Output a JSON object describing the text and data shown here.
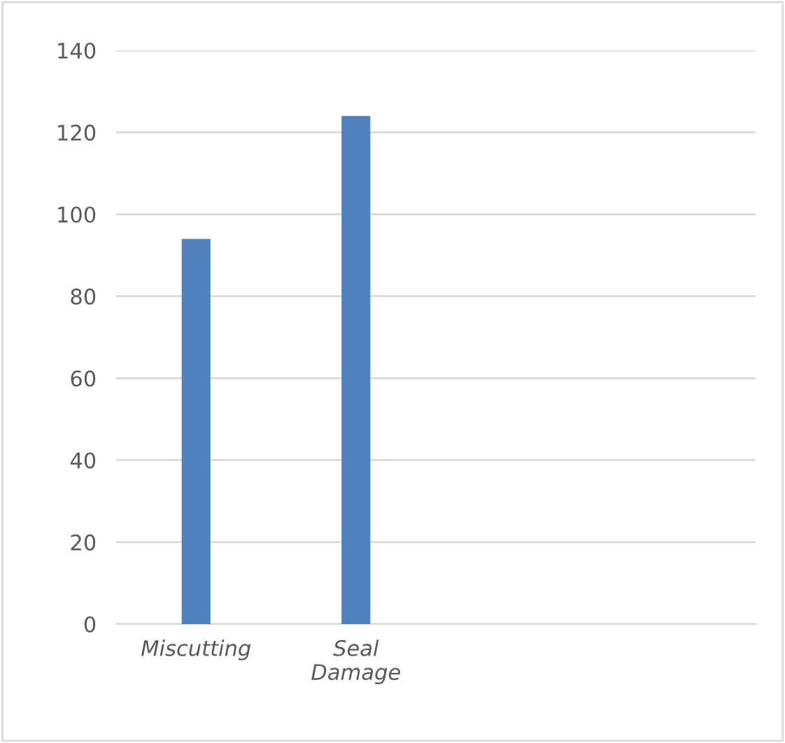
{
  "chart_data": {
    "type": "bar",
    "categories": [
      "Miscutting",
      "Seal\nDamage",
      null,
      null
    ],
    "values": [
      94,
      124,
      null,
      null
    ],
    "color": "#4f81bd",
    "ylim": [
      0,
      140
    ],
    "yticks": [
      0,
      20,
      40,
      60,
      80,
      100,
      120,
      140
    ],
    "grid": "y"
  }
}
